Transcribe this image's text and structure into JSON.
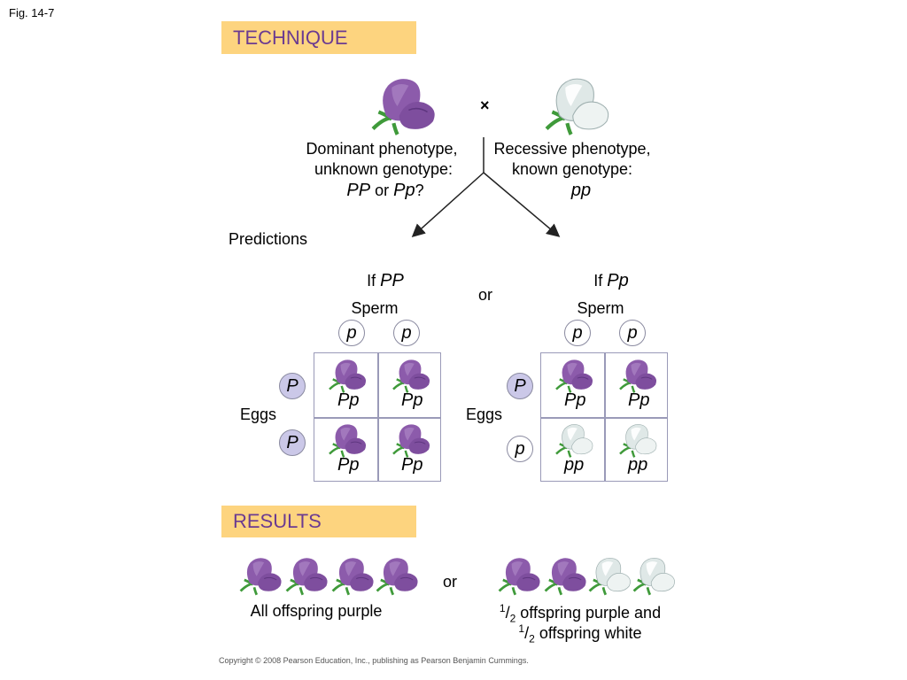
{
  "figure_label": "Fig. 14-7",
  "technique": {
    "header": "TECHNIQUE",
    "cross_symbol": "×",
    "dominant": {
      "line1": "Dominant phenotype,",
      "line2": "unknown genotype:",
      "g1": "PP",
      "or": " or ",
      "g2": "Pp",
      "q": "?"
    },
    "recessive": {
      "line1": "Recessive phenotype,",
      "line2": "known genotype:",
      "genotype": "pp"
    }
  },
  "predictions": {
    "label": "Predictions",
    "or": "or",
    "left": {
      "if": "If ",
      "case": "PP",
      "sperm_label": "Sperm",
      "eggs_label": "Eggs",
      "sperm": [
        "p",
        "p"
      ],
      "eggs": [
        "P",
        "P"
      ],
      "cells": [
        {
          "genotype": "Pp",
          "color": "purple"
        },
        {
          "genotype": "Pp",
          "color": "purple"
        },
        {
          "genotype": "Pp",
          "color": "purple"
        },
        {
          "genotype": "Pp",
          "color": "purple"
        }
      ]
    },
    "right": {
      "if": "If ",
      "case": "Pp",
      "sperm_label": "Sperm",
      "eggs_label": "Eggs",
      "sperm": [
        "p",
        "p"
      ],
      "eggs": [
        "P",
        "p"
      ],
      "cells": [
        {
          "genotype": "Pp",
          "color": "purple"
        },
        {
          "genotype": "Pp",
          "color": "purple"
        },
        {
          "genotype": "pp",
          "color": "white"
        },
        {
          "genotype": "pp",
          "color": "white"
        }
      ]
    }
  },
  "results": {
    "header": "RESULTS",
    "or": "or",
    "left_caption": "All offspring purple",
    "left_flowers": [
      "purple",
      "purple",
      "purple",
      "purple"
    ],
    "right_flowers": [
      "purple",
      "purple",
      "white",
      "white"
    ],
    "right_caption_line1": "1/2 offspring purple and",
    "right_caption_line2": "1/2 offspring white"
  },
  "copyright": "Copyright © 2008 Pearson Education, Inc., publishing as Pearson Benjamin Cummings.",
  "colors": {
    "header_bg": "#fdd47f",
    "header_text": "#6b3b91",
    "purple_flower": "#8c5bab",
    "white_flower": "#e4eceb",
    "egg_dominant": "#cbc8e8"
  }
}
